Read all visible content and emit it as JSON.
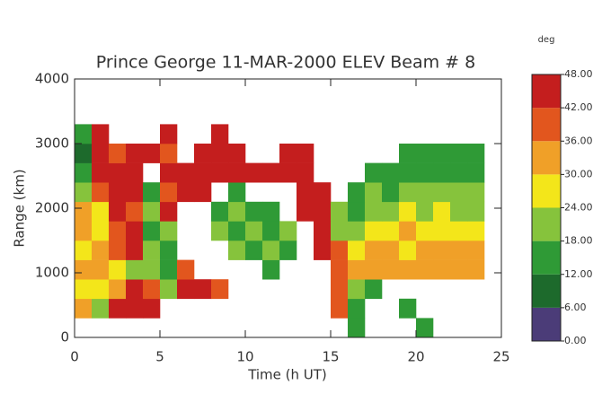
{
  "chart_data": {
    "type": "heatmap",
    "title": "Prince George 11-MAR-2000 ELEV Beam # 8",
    "x_label": "Time (h UT)",
    "y_label": "Range (km)",
    "xlim": [
      0,
      25
    ],
    "xticks": [
      0,
      5,
      10,
      15,
      20,
      25
    ],
    "ylim": [
      0,
      4000
    ],
    "yticks": [
      0,
      1000,
      2000,
      3000,
      4000
    ],
    "x_bins": [
      0,
      1,
      2,
      3,
      4,
      5,
      6,
      7,
      8,
      9,
      10,
      11,
      12,
      13,
      14,
      15,
      16,
      17,
      18,
      19,
      20,
      21,
      22,
      23,
      24
    ],
    "y_bins": [
      0,
      300,
      600,
      900,
      1200,
      1500,
      1800,
      2100,
      2400,
      2700,
      3000,
      3300
    ],
    "values": [
      [
        null,
        null,
        null,
        null,
        null,
        null,
        null,
        null,
        null,
        null,
        null,
        null,
        null,
        null,
        null,
        null,
        15,
        null,
        null,
        null,
        15,
        null,
        null,
        null
      ],
      [
        33,
        21,
        45,
        45,
        45,
        null,
        null,
        null,
        null,
        null,
        null,
        null,
        null,
        null,
        null,
        39,
        15,
        null,
        null,
        15,
        null,
        null,
        null,
        null
      ],
      [
        27,
        27,
        33,
        45,
        39,
        21,
        45,
        45,
        39,
        null,
        null,
        null,
        null,
        null,
        null,
        39,
        21,
        15,
        null,
        null,
        null,
        null,
        null,
        null
      ],
      [
        33,
        33,
        27,
        21,
        21,
        15,
        39,
        null,
        null,
        null,
        null,
        15,
        null,
        null,
        null,
        39,
        33,
        33,
        33,
        33,
        33,
        33,
        33,
        33
      ],
      [
        27,
        33,
        39,
        45,
        21,
        15,
        null,
        null,
        null,
        21,
        15,
        21,
        15,
        null,
        45,
        39,
        27,
        33,
        33,
        27,
        33,
        33,
        33,
        33
      ],
      [
        33,
        27,
        39,
        45,
        15,
        21,
        null,
        null,
        21,
        15,
        21,
        15,
        21,
        null,
        45,
        21,
        21,
        27,
        27,
        33,
        27,
        27,
        27,
        27
      ],
      [
        33,
        27,
        45,
        39,
        21,
        45,
        null,
        null,
        15,
        21,
        15,
        15,
        null,
        45,
        45,
        21,
        15,
        21,
        21,
        27,
        21,
        27,
        21,
        21
      ],
      [
        21,
        39,
        45,
        45,
        15,
        39,
        45,
        45,
        null,
        15,
        null,
        null,
        null,
        45,
        45,
        null,
        15,
        21,
        15,
        21,
        21,
        21,
        21,
        21
      ],
      [
        15,
        45,
        45,
        45,
        null,
        45,
        45,
        45,
        45,
        45,
        45,
        45,
        45,
        45,
        null,
        null,
        null,
        15,
        15,
        15,
        15,
        15,
        15,
        15
      ],
      [
        9,
        45,
        39,
        45,
        45,
        39,
        null,
        45,
        45,
        45,
        null,
        null,
        45,
        45,
        null,
        null,
        null,
        null,
        null,
        15,
        15,
        15,
        15,
        15
      ],
      [
        15,
        45,
        null,
        null,
        null,
        45,
        null,
        null,
        45,
        null,
        null,
        null,
        null,
        null,
        null,
        null,
        null,
        null,
        null,
        null,
        null,
        null,
        null,
        null
      ]
    ],
    "colorbar_title": "deg",
    "clim": [
      0,
      48
    ],
    "cticks": [
      {
        "value": 0,
        "label": "0.00"
      },
      {
        "value": 6,
        "label": "6.00"
      },
      {
        "value": 12,
        "label": "12.00"
      },
      {
        "value": 18,
        "label": "18.00"
      },
      {
        "value": 24,
        "label": "24.00"
      },
      {
        "value": 30,
        "label": "30.00"
      },
      {
        "value": 36,
        "label": "36.00"
      },
      {
        "value": 42,
        "label": "42.00"
      },
      {
        "value": 48,
        "label": "48.00"
      }
    ],
    "colors": [
      "#4b3c78",
      "#1d6a2c",
      "#2f9a36",
      "#86c33c",
      "#f3e61a",
      "#f0a028",
      "#e2561e",
      "#c41e1e"
    ]
  }
}
